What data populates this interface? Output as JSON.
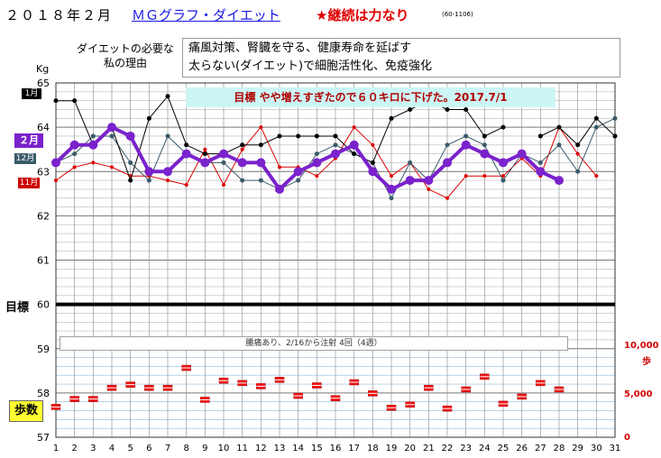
{
  "header": {
    "year_month": "２０１８年２月",
    "graph_link": "ＭＧグラフ・ダイエット",
    "slogan": "★継続は力なり",
    "code": "(60-1106)"
  },
  "reason": {
    "label": "ダイエットの必要な私の理由",
    "line1": "痛風対策、腎臓を守る、健康寿命を延ばす",
    "line2": "太らない(ダイエット)で細胞活性化、免疫強化"
  },
  "goal_banner": "目標 やや増えすぎたので６０キロに下げた。2017.7/1",
  "goal_label": "目標",
  "note": "腰痛あり、2/16から注射 4回（4週）",
  "steps_label": "歩数",
  "month_labels": {
    "jan": "1月",
    "feb": "２月",
    "dec": "12月",
    "nov": "11月"
  },
  "colors": {
    "feb": "#7a22cc",
    "jan": "#000000",
    "dec": "#3a5a6a",
    "nov": "#dd0000",
    "steps": "#ee1111",
    "goal_line": "#000000",
    "banner_bg": "#ccf5f5"
  },
  "chart_data": {
    "type": "line",
    "ylabel": "Kg",
    "ylim": [
      57,
      65
    ],
    "yticks": [
      "57",
      "58",
      "59",
      "60",
      "61",
      "62",
      "63",
      "64",
      "65"
    ],
    "x": [
      1,
      2,
      3,
      4,
      5,
      6,
      7,
      8,
      9,
      10,
      11,
      12,
      13,
      14,
      15,
      16,
      17,
      18,
      19,
      20,
      21,
      22,
      23,
      24,
      25,
      26,
      27,
      28,
      29,
      30,
      31
    ],
    "goal": 60,
    "series": [
      {
        "name": "２月",
        "values": [
          63.2,
          63.6,
          63.6,
          64.0,
          63.8,
          63.0,
          63.0,
          63.4,
          63.2,
          63.4,
          63.2,
          63.2,
          62.6,
          63.0,
          63.2,
          63.4,
          63.6,
          63.0,
          62.6,
          62.8,
          62.8,
          63.2,
          63.6,
          63.4,
          63.2,
          63.4,
          63.0,
          62.8,
          null,
          null,
          null
        ]
      },
      {
        "name": "1月",
        "values": [
          64.6,
          64.6,
          63.6,
          64.0,
          62.8,
          64.2,
          64.7,
          63.6,
          63.4,
          63.4,
          63.6,
          63.6,
          63.8,
          63.8,
          63.8,
          63.8,
          63.4,
          63.2,
          64.2,
          64.4,
          64.6,
          64.4,
          64.4,
          63.8,
          64.0,
          null,
          63.8,
          64.0,
          63.6,
          64.2,
          63.8
        ]
      },
      {
        "name": "12月",
        "values": [
          63.2,
          63.4,
          63.8,
          63.8,
          63.2,
          62.8,
          63.8,
          63.4,
          63.2,
          63.2,
          62.8,
          62.8,
          62.6,
          62.8,
          63.4,
          63.6,
          63.4,
          63.2,
          62.4,
          63.2,
          62.8,
          63.6,
          63.8,
          63.6,
          62.8,
          63.4,
          63.2,
          63.6,
          63.0,
          64.0,
          64.2
        ]
      },
      {
        "name": "11月",
        "values": [
          62.8,
          63.1,
          63.2,
          63.1,
          62.9,
          62.9,
          62.8,
          62.7,
          63.5,
          62.7,
          63.5,
          64.0,
          63.1,
          63.1,
          62.9,
          63.3,
          64.0,
          63.6,
          62.9,
          63.2,
          62.6,
          62.4,
          62.9,
          62.9,
          62.9,
          63.3,
          62.9,
          64.0,
          63.4,
          62.9,
          null
        ]
      },
      {
        "name": "歩数",
        "axis": "right",
        "values": [
          3800,
          4800,
          4800,
          6200,
          6600,
          6200,
          6200,
          8700,
          4700,
          7100,
          6800,
          6400,
          7200,
          5200,
          6500,
          4900,
          6900,
          5500,
          3700,
          4100,
          6200,
          3600,
          6000,
          7600,
          4200,
          5100,
          6800,
          6000,
          null,
          null,
          null
        ]
      }
    ],
    "y2lim": [
      0,
      10000
    ],
    "y2ticks": [
      "0",
      "5,000",
      "10,000"
    ],
    "y2label": "歩"
  }
}
